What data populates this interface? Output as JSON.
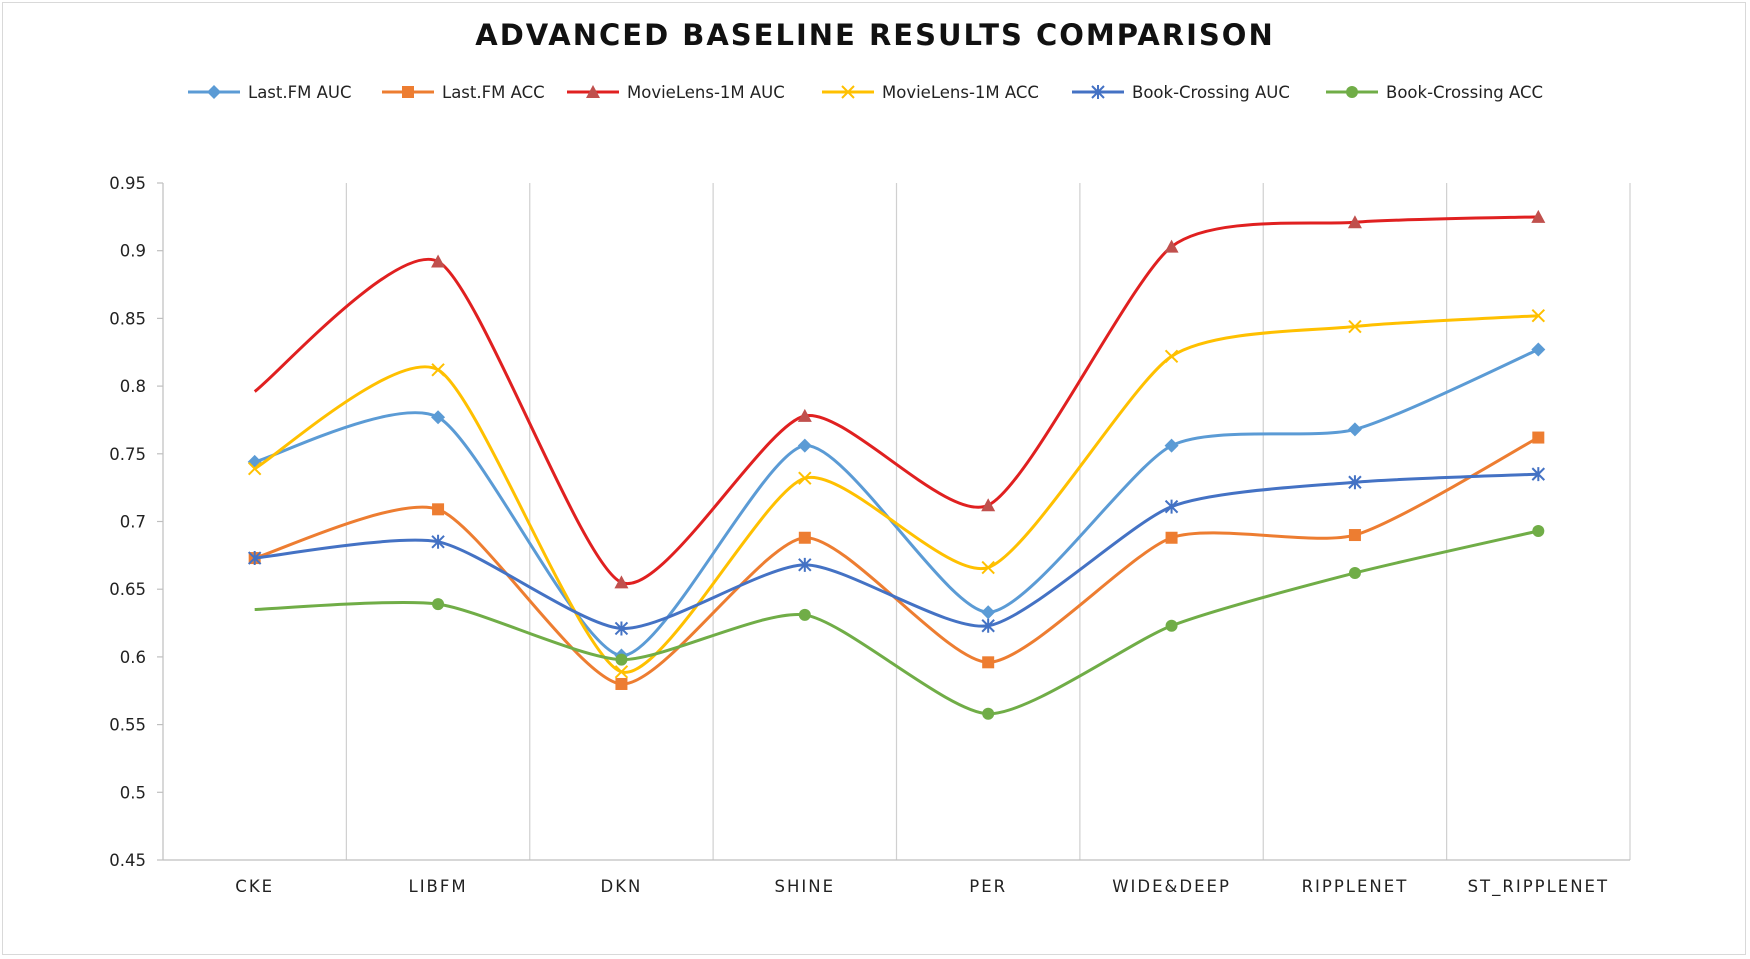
{
  "chart_data": {
    "type": "line",
    "title": "ADVANCED BASELINE RESULTS COMPARISON",
    "xlabel": "",
    "ylabel": "",
    "categories": [
      "CKE",
      "LIBFM",
      "DKN",
      "SHINE",
      "PER",
      "WIDE&DEEP",
      "RIPPLENET",
      "ST_RIPPLENET"
    ],
    "ylim": [
      0.45,
      0.95
    ],
    "yticks": [
      "0.45",
      "0.5",
      "0.55",
      "0.6",
      "0.65",
      "0.7",
      "0.75",
      "0.8",
      "0.85",
      "0.9",
      "0.95"
    ],
    "grid": "vertical",
    "legend_position": "top",
    "smooth": true,
    "series": [
      {
        "name": "Last.FM AUC",
        "color": "#5b9bd5",
        "marker": "diamond",
        "values": [
          0.744,
          0.777,
          0.601,
          0.756,
          0.633,
          0.756,
          0.768,
          0.827
        ]
      },
      {
        "name": "Last.FM ACC",
        "color": "#ed7d31",
        "marker": "square",
        "values": [
          0.673,
          0.709,
          0.58,
          0.688,
          0.596,
          0.688,
          0.69,
          0.762
        ]
      },
      {
        "name": "MovieLens-1M AUC",
        "color": "#e02020",
        "marker": "triangle",
        "values": [
          0.796,
          0.892,
          0.655,
          0.778,
          0.712,
          0.903,
          0.921,
          0.925
        ]
      },
      {
        "name": "MovieLens-1M ACC",
        "color": "#ffc000",
        "marker": "x",
        "values": [
          0.739,
          0.812,
          0.589,
          0.732,
          0.666,
          0.822,
          0.844,
          0.852
        ]
      },
      {
        "name": "Book-Crossing AUC",
        "color": "#4472c4",
        "marker": "asterisk",
        "values": [
          0.673,
          0.685,
          0.621,
          0.668,
          0.623,
          0.711,
          0.729,
          0.735
        ]
      },
      {
        "name": "Book-Crossing ACC",
        "color": "#70ad47",
        "marker": "circle",
        "values": [
          0.635,
          0.639,
          0.598,
          0.631,
          0.558,
          0.623,
          0.662,
          0.693
        ]
      }
    ]
  }
}
